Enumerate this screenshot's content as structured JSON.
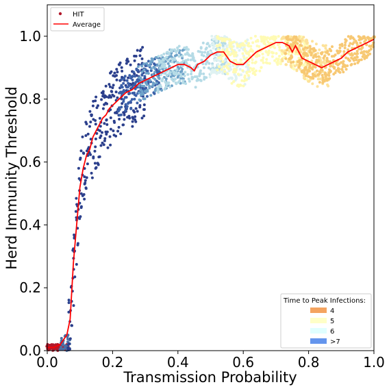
{
  "chart_data": {
    "type": "scatter",
    "xlabel": "Transmission Probability",
    "ylabel": "Herd Immunity Threshold",
    "xlim": [
      0.0,
      1.0
    ],
    "ylim": [
      0.0,
      1.1
    ],
    "x_ticks": [
      "0.0",
      "0.2",
      "0.4",
      "0.6",
      "0.8",
      "1.0"
    ],
    "y_ticks": [
      "0.0",
      "0.2",
      "0.4",
      "0.6",
      "0.8",
      "1.0"
    ],
    "grid": false,
    "series": [
      {
        "name": "HIT",
        "kind": "scatter",
        "color": "#b2182b"
      },
      {
        "name": "Average",
        "kind": "line",
        "color": "#ff0000",
        "x": [
          0.0,
          0.02,
          0.04,
          0.06,
          0.07,
          0.08,
          0.09,
          0.1,
          0.11,
          0.12,
          0.13,
          0.14,
          0.15,
          0.16,
          0.17,
          0.18,
          0.19,
          0.2,
          0.22,
          0.24,
          0.26,
          0.28,
          0.3,
          0.32,
          0.34,
          0.36,
          0.38,
          0.4,
          0.42,
          0.44,
          0.45,
          0.46,
          0.48,
          0.5,
          0.52,
          0.54,
          0.56,
          0.58,
          0.6,
          0.62,
          0.64,
          0.66,
          0.68,
          0.7,
          0.72,
          0.74,
          0.75,
          0.76,
          0.78,
          0.8,
          0.82,
          0.84,
          0.86,
          0.88,
          0.9,
          0.92,
          0.94,
          0.96,
          0.98,
          1.0
        ],
        "y": [
          0.01,
          0.01,
          0.02,
          0.05,
          0.1,
          0.28,
          0.4,
          0.52,
          0.58,
          0.62,
          0.64,
          0.68,
          0.7,
          0.72,
          0.74,
          0.75,
          0.77,
          0.78,
          0.8,
          0.82,
          0.83,
          0.85,
          0.86,
          0.87,
          0.88,
          0.89,
          0.9,
          0.91,
          0.91,
          0.9,
          0.89,
          0.91,
          0.92,
          0.94,
          0.95,
          0.95,
          0.92,
          0.91,
          0.91,
          0.93,
          0.95,
          0.96,
          0.97,
          0.98,
          0.98,
          0.97,
          0.95,
          0.97,
          0.93,
          0.92,
          0.91,
          0.9,
          0.91,
          0.92,
          0.93,
          0.95,
          0.96,
          0.97,
          0.98,
          0.99
        ]
      }
    ],
    "legend": {
      "placement": "top-left",
      "entries": [
        "HIT",
        "Average"
      ]
    },
    "color_legend": {
      "placement": "bottom-right",
      "title": "Time to Peak Infections:",
      "entries": [
        {
          "label": "4",
          "color": "#f4a460"
        },
        {
          "label": "5",
          "color": "#ffffc8"
        },
        {
          "label": "6",
          "color": "#e0ffff"
        },
        {
          "label": ">7",
          "color": "#6495ed"
        }
      ]
    },
    "scatter_bands": [
      {
        "x_range": [
          0.0,
          0.065
        ],
        "center": "flat",
        "base": 0.01,
        "spread": 0.01,
        "color": "#b2182b"
      },
      {
        "x_range": [
          0.04,
          0.07
        ],
        "center": "flat",
        "base": 0.02,
        "spread": 0.03,
        "color": "#4a6fa5"
      },
      {
        "x_range": [
          0.065,
          0.3
        ],
        "center": "average",
        "spread": 0.12,
        "color": "#2b3f8c"
      },
      {
        "x_range": [
          0.22,
          0.35
        ],
        "center": "average",
        "spread": 0.06,
        "color": "#3a5fa8"
      },
      {
        "x_range": [
          0.28,
          0.42
        ],
        "center": "average",
        "spread": 0.06,
        "color": "#6fa3c9"
      },
      {
        "x_range": [
          0.34,
          0.55
        ],
        "center": "average",
        "spread": 0.06,
        "color": "#b5dbe6"
      },
      {
        "x_range": [
          0.5,
          0.62
        ],
        "center": "average",
        "spread": 0.07,
        "color": "#dff2f2"
      },
      {
        "x_range": [
          0.52,
          0.8
        ],
        "center": "average",
        "spread": 0.07,
        "color": "#fffbb4"
      },
      {
        "x_range": [
          0.72,
          0.86
        ],
        "center": "average",
        "spread": 0.07,
        "color": "#fde29a"
      },
      {
        "x_range": [
          0.73,
          1.0
        ],
        "center": "average",
        "spread": 0.05,
        "color": "#f7c873"
      }
    ]
  }
}
